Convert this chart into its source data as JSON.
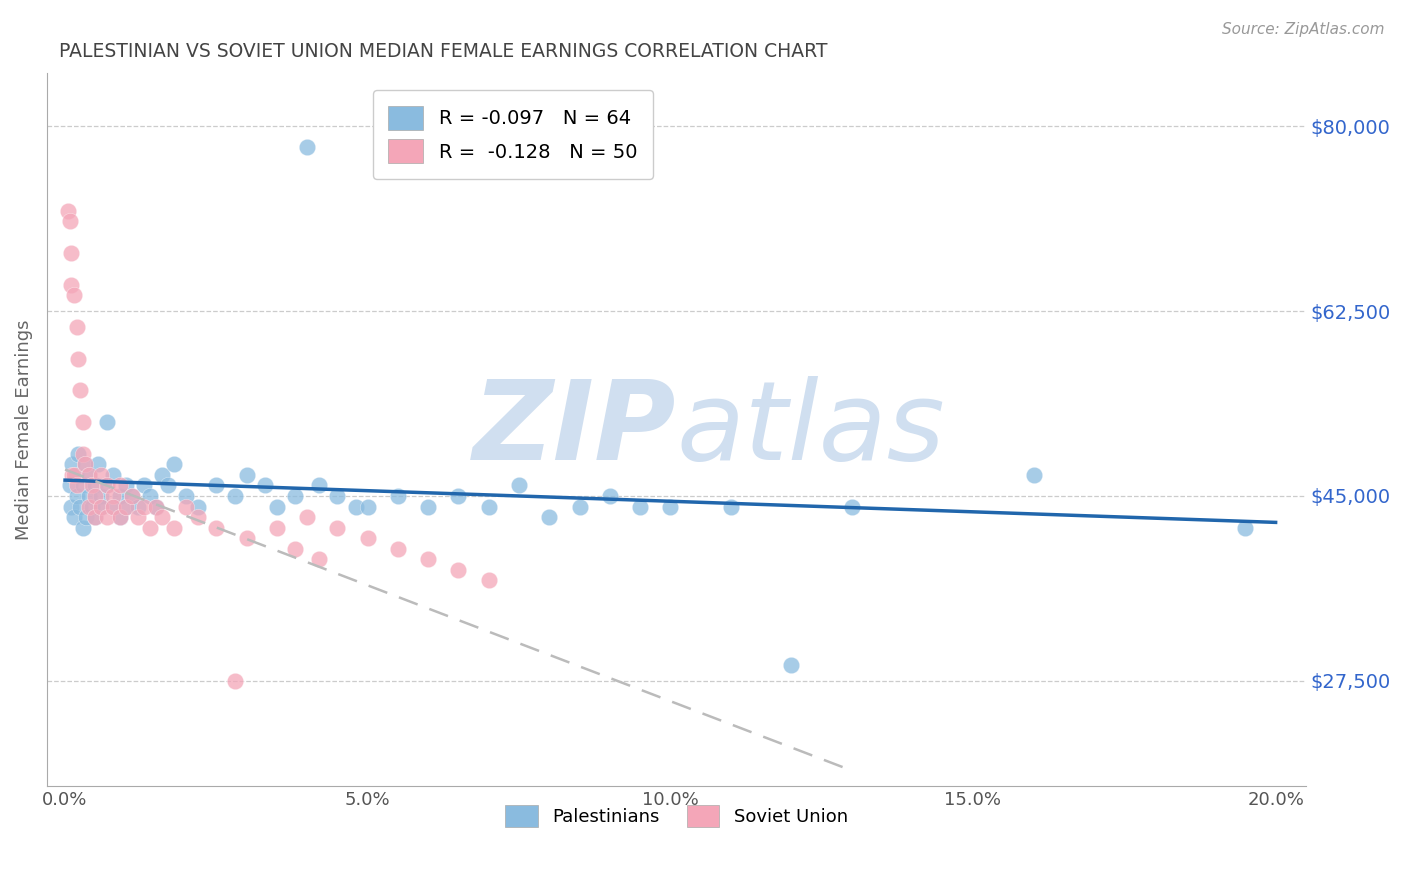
{
  "title": "PALESTINIAN VS SOVIET UNION MEDIAN FEMALE EARNINGS CORRELATION CHART",
  "source": "Source: ZipAtlas.com",
  "ylabel": "Median Female Earnings",
  "xlabel_ticks": [
    "0.0%",
    "5.0%",
    "10.0%",
    "15.0%",
    "20.0%"
  ],
  "xlabel_vals": [
    0.0,
    0.05,
    0.1,
    0.15,
    0.2
  ],
  "ytick_labels": [
    "$27,500",
    "$45,000",
    "$62,500",
    "$80,000"
  ],
  "ytick_vals": [
    27500,
    45000,
    62500,
    80000
  ],
  "ylim": [
    17500,
    85000
  ],
  "xlim": [
    -0.003,
    0.205
  ],
  "blue_R": "-0.097",
  "blue_N": "64",
  "pink_R": "-0.128",
  "pink_N": "50",
  "blue_color": "#8abbdf",
  "pink_color": "#f4a6b8",
  "blue_line_color": "#2166ac",
  "pink_line_color": "#bbbbbb",
  "watermark_color": "#d0dff0",
  "background_color": "#ffffff",
  "grid_color": "#cccccc",
  "title_color": "#444444",
  "axis_label_color": "#666666",
  "right_tick_color": "#3366cc",
  "pal_x": [
    0.0008,
    0.001,
    0.0012,
    0.0015,
    0.0018,
    0.002,
    0.0022,
    0.0025,
    0.003,
    0.003,
    0.0033,
    0.0035,
    0.004,
    0.004,
    0.0045,
    0.005,
    0.005,
    0.0055,
    0.006,
    0.006,
    0.007,
    0.007,
    0.008,
    0.008,
    0.009,
    0.009,
    0.01,
    0.01,
    0.011,
    0.012,
    0.013,
    0.014,
    0.015,
    0.016,
    0.017,
    0.018,
    0.02,
    0.022,
    0.025,
    0.028,
    0.03,
    0.033,
    0.035,
    0.038,
    0.04,
    0.042,
    0.045,
    0.048,
    0.05,
    0.055,
    0.06,
    0.065,
    0.07,
    0.075,
    0.08,
    0.085,
    0.09,
    0.095,
    0.1,
    0.11,
    0.12,
    0.13,
    0.16,
    0.195
  ],
  "pal_y": [
    46000,
    44000,
    48000,
    43000,
    47000,
    45000,
    49000,
    44000,
    46000,
    42000,
    48000,
    43000,
    45000,
    47000,
    44000,
    46000,
    43000,
    48000,
    45000,
    44000,
    52000,
    46000,
    44000,
    47000,
    43000,
    45000,
    44000,
    46000,
    45000,
    44000,
    46000,
    45000,
    44000,
    47000,
    46000,
    48000,
    45000,
    44000,
    46000,
    45000,
    47000,
    46000,
    44000,
    45000,
    78000,
    46000,
    45000,
    44000,
    44000,
    45000,
    44000,
    45000,
    44000,
    46000,
    43000,
    44000,
    45000,
    44000,
    44000,
    44000,
    29000,
    44000,
    47000,
    42000
  ],
  "sov_x": [
    0.0005,
    0.0008,
    0.001,
    0.001,
    0.0012,
    0.0015,
    0.0015,
    0.002,
    0.002,
    0.0022,
    0.0025,
    0.003,
    0.003,
    0.0033,
    0.004,
    0.004,
    0.0045,
    0.005,
    0.005,
    0.006,
    0.006,
    0.007,
    0.007,
    0.008,
    0.008,
    0.009,
    0.009,
    0.01,
    0.011,
    0.012,
    0.013,
    0.014,
    0.015,
    0.016,
    0.018,
    0.02,
    0.022,
    0.025,
    0.03,
    0.035,
    0.038,
    0.04,
    0.042,
    0.045,
    0.05,
    0.055,
    0.06,
    0.065,
    0.07,
    0.028
  ],
  "sov_y": [
    72000,
    71000,
    68000,
    65000,
    47000,
    64000,
    47000,
    61000,
    46000,
    58000,
    55000,
    52000,
    49000,
    48000,
    47000,
    44000,
    46000,
    45000,
    43000,
    47000,
    44000,
    46000,
    43000,
    45000,
    44000,
    46000,
    43000,
    44000,
    45000,
    43000,
    44000,
    42000,
    44000,
    43000,
    42000,
    44000,
    43000,
    42000,
    41000,
    42000,
    40000,
    43000,
    39000,
    42000,
    41000,
    40000,
    39000,
    38000,
    37000,
    27500
  ],
  "blue_line_x": [
    0.0,
    0.2
  ],
  "blue_line_y": [
    46500,
    42500
  ],
  "pink_line_x": [
    0.0,
    0.13
  ],
  "pink_line_y": [
    47500,
    19000
  ]
}
